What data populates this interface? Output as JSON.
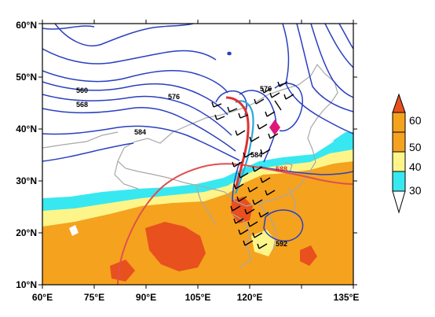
{
  "map": {
    "x_axis": {
      "unit": "°E",
      "ticks": [
        "60°E",
        "75°E",
        "90°E",
        "105°E",
        "120°E",
        "135°E"
      ]
    },
    "y_axis": {
      "unit": "°N",
      "ticks": [
        "10°N",
        "20°N",
        "30°N",
        "40°N",
        "50°N",
        "60°N"
      ]
    },
    "extent": {
      "lon": [
        60,
        135
      ],
      "lat": [
        10,
        60
      ]
    },
    "contour_labels": [
      {
        "text": "560",
        "color": "#000000"
      },
      {
        "text": "568",
        "color": "#000000"
      },
      {
        "text": "576",
        "color": "#000000"
      },
      {
        "text": "576",
        "color": "#000000"
      },
      {
        "text": "584",
        "color": "#000000"
      },
      {
        "text": "584",
        "color": "#000000"
      },
      {
        "text": "588",
        "color": "#e03030"
      },
      {
        "text": "592",
        "color": "#000000"
      }
    ],
    "colors": {
      "geopotential": "#2a3fbf",
      "contour_588": "#e05050",
      "borders": "#a8a8a8",
      "shear_line": "#e03030",
      "trough_line": "#2aa8d8",
      "marker": "#e0157a",
      "wind_barbs": "#000000"
    }
  },
  "colorbar": {
    "labels": [
      "60",
      "50",
      "40",
      "30"
    ],
    "colors": [
      "#e8501e",
      "#f5a21e",
      "#fdf58a",
      "#38e8f0"
    ]
  }
}
